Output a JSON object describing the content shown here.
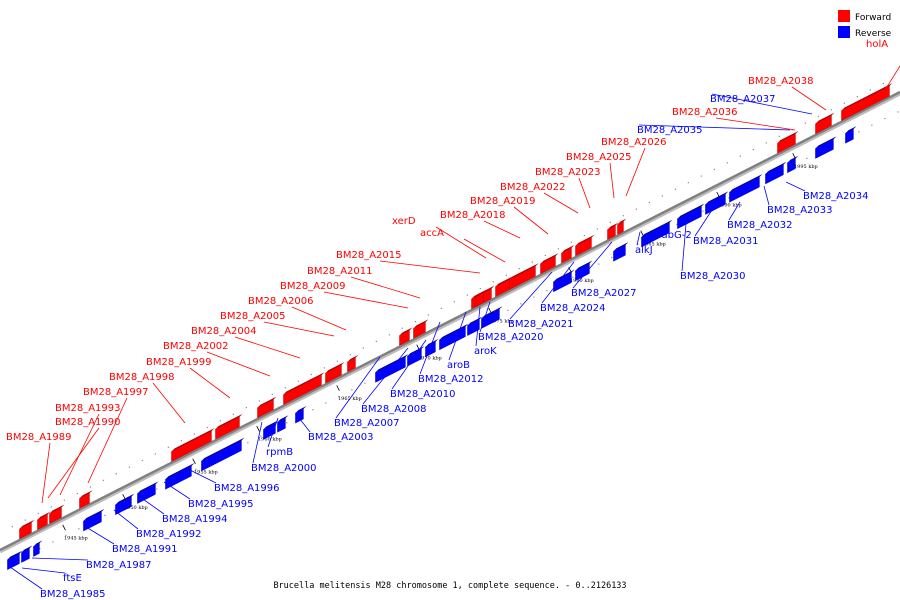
{
  "caption": "Brucella melitensis M28 chromosome 1, complete sequence. - 0..2126133",
  "colors": {
    "forward": "#ff0000",
    "reverse": "#0000ff",
    "backbone": "#808080"
  },
  "legend": [
    {
      "label": "Forward",
      "color": "#ff0000"
    },
    {
      "label": "Reverse",
      "color": "#0000ff"
    }
  ],
  "ticks": [
    "1945 kbp",
    "1950 kbp",
    "1955 kbp",
    "1960 kbp",
    "1965 kbp",
    "1970 kbp",
    "1975 kbp",
    "1980 kbp",
    "1985 kbp",
    "1990 kbp",
    "1995 kbp"
  ],
  "forward_genes": [
    "BM28_A1989",
    "BM28_A1990",
    "BM28_A1993",
    "BM28_A1997",
    "BM28_A1998",
    "BM28_A1999",
    "BM28_A2002",
    "BM28_A2004",
    "BM28_A2005",
    "BM28_A2006",
    "BM28_A2009",
    "BM28_A2011",
    "BM28_A2015",
    "accA",
    "xerD",
    "BM28_A2018",
    "BM28_A2019",
    "BM28_A2022",
    "BM28_A2023",
    "BM28_A2025",
    "BM28_A2026",
    "BM28_A2036",
    "BM28_A2038",
    "holA"
  ],
  "reverse_genes": [
    "BM28_A1985",
    "ftsE",
    "BM28_A1987",
    "BM28_A1991",
    "BM28_A1992",
    "BM28_A1994",
    "BM28_A1995",
    "BM28_A1996",
    "BM28_A2000",
    "rpmB",
    "BM28_A2003",
    "BM28_A2007",
    "BM28_A2008",
    "BM28_A2010",
    "BM28_A2012",
    "aroB",
    "aroK",
    "BM28_A2020",
    "BM28_A2021",
    "BM28_A2024",
    "BM28_A2027",
    "alkJ",
    "fabG-2",
    "BM28_A2030",
    "BM28_A2031",
    "BM28_A2032",
    "BM28_A2033",
    "BM28_A2034",
    "BM28_A2035",
    "BM28_A2037"
  ]
}
